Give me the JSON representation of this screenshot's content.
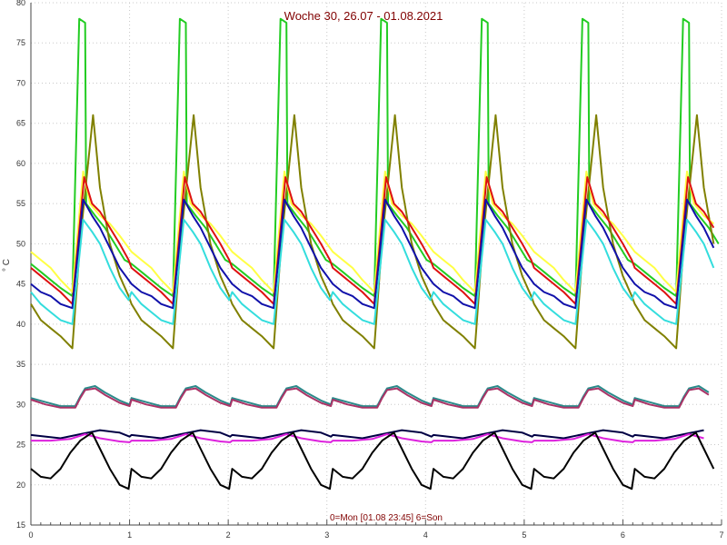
{
  "chart_data": {
    "type": "line",
    "title": "Woche 30, 26.07 - 01.08.2021",
    "footer": "0=Mon [01.08 23:45] 6=Son",
    "ylabel": "° C",
    "xlabel": "",
    "xlim": [
      0,
      7
    ],
    "ylim": [
      15,
      80
    ],
    "x_ticks": [
      0,
      1,
      2,
      3,
      4,
      5,
      6,
      7
    ],
    "y_ticks": [
      15,
      20,
      25,
      30,
      35,
      40,
      45,
      50,
      55,
      60,
      65,
      70,
      75,
      80
    ],
    "grid": "dotted vertical and horizontal",
    "period_days": 1.02,
    "series": [
      {
        "color": "#22cc22",
        "values": [
          [
            0.0,
            47.5
          ],
          [
            0.1,
            46.5
          ],
          [
            0.2,
            45.5
          ],
          [
            0.3,
            44.5
          ],
          [
            0.42,
            43.5
          ],
          [
            0.49,
            78.0
          ],
          [
            0.55,
            77.5
          ],
          [
            0.56,
            55.0
          ],
          [
            0.65,
            53.5
          ],
          [
            0.75,
            52.0
          ],
          [
            0.85,
            50.0
          ],
          [
            0.95,
            48.0
          ]
        ]
      },
      {
        "color": "#808000",
        "values": [
          [
            0.0,
            42.5
          ],
          [
            0.1,
            40.5
          ],
          [
            0.2,
            39.5
          ],
          [
            0.3,
            38.5
          ],
          [
            0.42,
            37.0
          ],
          [
            0.5,
            50.5
          ],
          [
            0.63,
            66.0
          ],
          [
            0.7,
            57.0
          ],
          [
            0.8,
            50.0
          ],
          [
            0.9,
            46.0
          ],
          [
            0.99,
            43.5
          ]
        ]
      },
      {
        "color": "#ffff44",
        "values": [
          [
            0.0,
            49.0
          ],
          [
            0.1,
            48.0
          ],
          [
            0.2,
            47.0
          ],
          [
            0.3,
            45.5
          ],
          [
            0.42,
            44.0
          ],
          [
            0.53,
            59.0
          ],
          [
            0.6,
            55.0
          ],
          [
            0.7,
            53.5
          ],
          [
            0.8,
            52.5
          ],
          [
            0.9,
            51.0
          ],
          [
            0.99,
            49.5
          ]
        ]
      },
      {
        "color": "#dd1111",
        "values": [
          [
            0.0,
            47.0
          ],
          [
            0.1,
            46.0
          ],
          [
            0.2,
            45.0
          ],
          [
            0.3,
            44.0
          ],
          [
            0.42,
            42.5
          ],
          [
            0.54,
            58.3
          ],
          [
            0.62,
            55.0
          ],
          [
            0.7,
            54.0
          ],
          [
            0.8,
            52.0
          ],
          [
            0.9,
            50.0
          ],
          [
            0.99,
            48.0
          ]
        ]
      },
      {
        "color": "#1111aa",
        "values": [
          [
            0.0,
            45.0
          ],
          [
            0.1,
            44.0
          ],
          [
            0.2,
            43.5
          ],
          [
            0.3,
            42.5
          ],
          [
            0.42,
            42.0
          ],
          [
            0.53,
            55.5
          ],
          [
            0.62,
            53.5
          ],
          [
            0.7,
            52.0
          ],
          [
            0.8,
            49.5
          ],
          [
            0.9,
            47.0
          ],
          [
            0.99,
            45.5
          ]
        ]
      },
      {
        "color": "#33dddd",
        "values": [
          [
            0.0,
            44.0
          ],
          [
            0.1,
            42.5
          ],
          [
            0.2,
            41.5
          ],
          [
            0.3,
            40.5
          ],
          [
            0.42,
            40.0
          ],
          [
            0.53,
            53.0
          ],
          [
            0.62,
            51.5
          ],
          [
            0.7,
            50.0
          ],
          [
            0.8,
            47.0
          ],
          [
            0.9,
            44.5
          ],
          [
            0.99,
            43.0
          ]
        ]
      },
      {
        "color": "#2a8a8a",
        "values": [
          [
            0.0,
            30.8
          ],
          [
            0.15,
            30.3
          ],
          [
            0.3,
            29.8
          ],
          [
            0.45,
            29.8
          ],
          [
            0.5,
            31.0
          ],
          [
            0.55,
            32.0
          ],
          [
            0.65,
            32.3
          ],
          [
            0.75,
            31.5
          ],
          [
            0.9,
            30.5
          ],
          [
            1.0,
            30.0
          ]
        ]
      },
      {
        "color": "#aa3366",
        "values": [
          [
            0.0,
            30.6
          ],
          [
            0.15,
            30.0
          ],
          [
            0.3,
            29.6
          ],
          [
            0.45,
            29.6
          ],
          [
            0.5,
            30.8
          ],
          [
            0.55,
            31.8
          ],
          [
            0.65,
            32.0
          ],
          [
            0.75,
            31.2
          ],
          [
            0.9,
            30.2
          ],
          [
            1.0,
            29.8
          ]
        ]
      },
      {
        "color": "#000044",
        "values": [
          [
            0.0,
            26.2
          ],
          [
            0.3,
            25.8
          ],
          [
            0.5,
            26.3
          ],
          [
            0.7,
            26.8
          ],
          [
            0.9,
            26.5
          ],
          [
            1.0,
            26.0
          ]
        ]
      },
      {
        "color": "#dd22dd",
        "values": [
          [
            0.0,
            25.5
          ],
          [
            0.2,
            25.5
          ],
          [
            0.4,
            25.7
          ],
          [
            0.55,
            26.3
          ],
          [
            0.7,
            25.8
          ],
          [
            0.9,
            25.4
          ],
          [
            1.0,
            25.3
          ]
        ]
      },
      {
        "color": "#000000",
        "values": [
          [
            0.0,
            22.0
          ],
          [
            0.1,
            21.0
          ],
          [
            0.2,
            20.8
          ],
          [
            0.3,
            22.0
          ],
          [
            0.4,
            24.0
          ],
          [
            0.5,
            25.5
          ],
          [
            0.62,
            26.5
          ],
          [
            0.7,
            24.5
          ],
          [
            0.8,
            22.0
          ],
          [
            0.9,
            20.0
          ],
          [
            0.99,
            19.5
          ]
        ]
      }
    ]
  }
}
